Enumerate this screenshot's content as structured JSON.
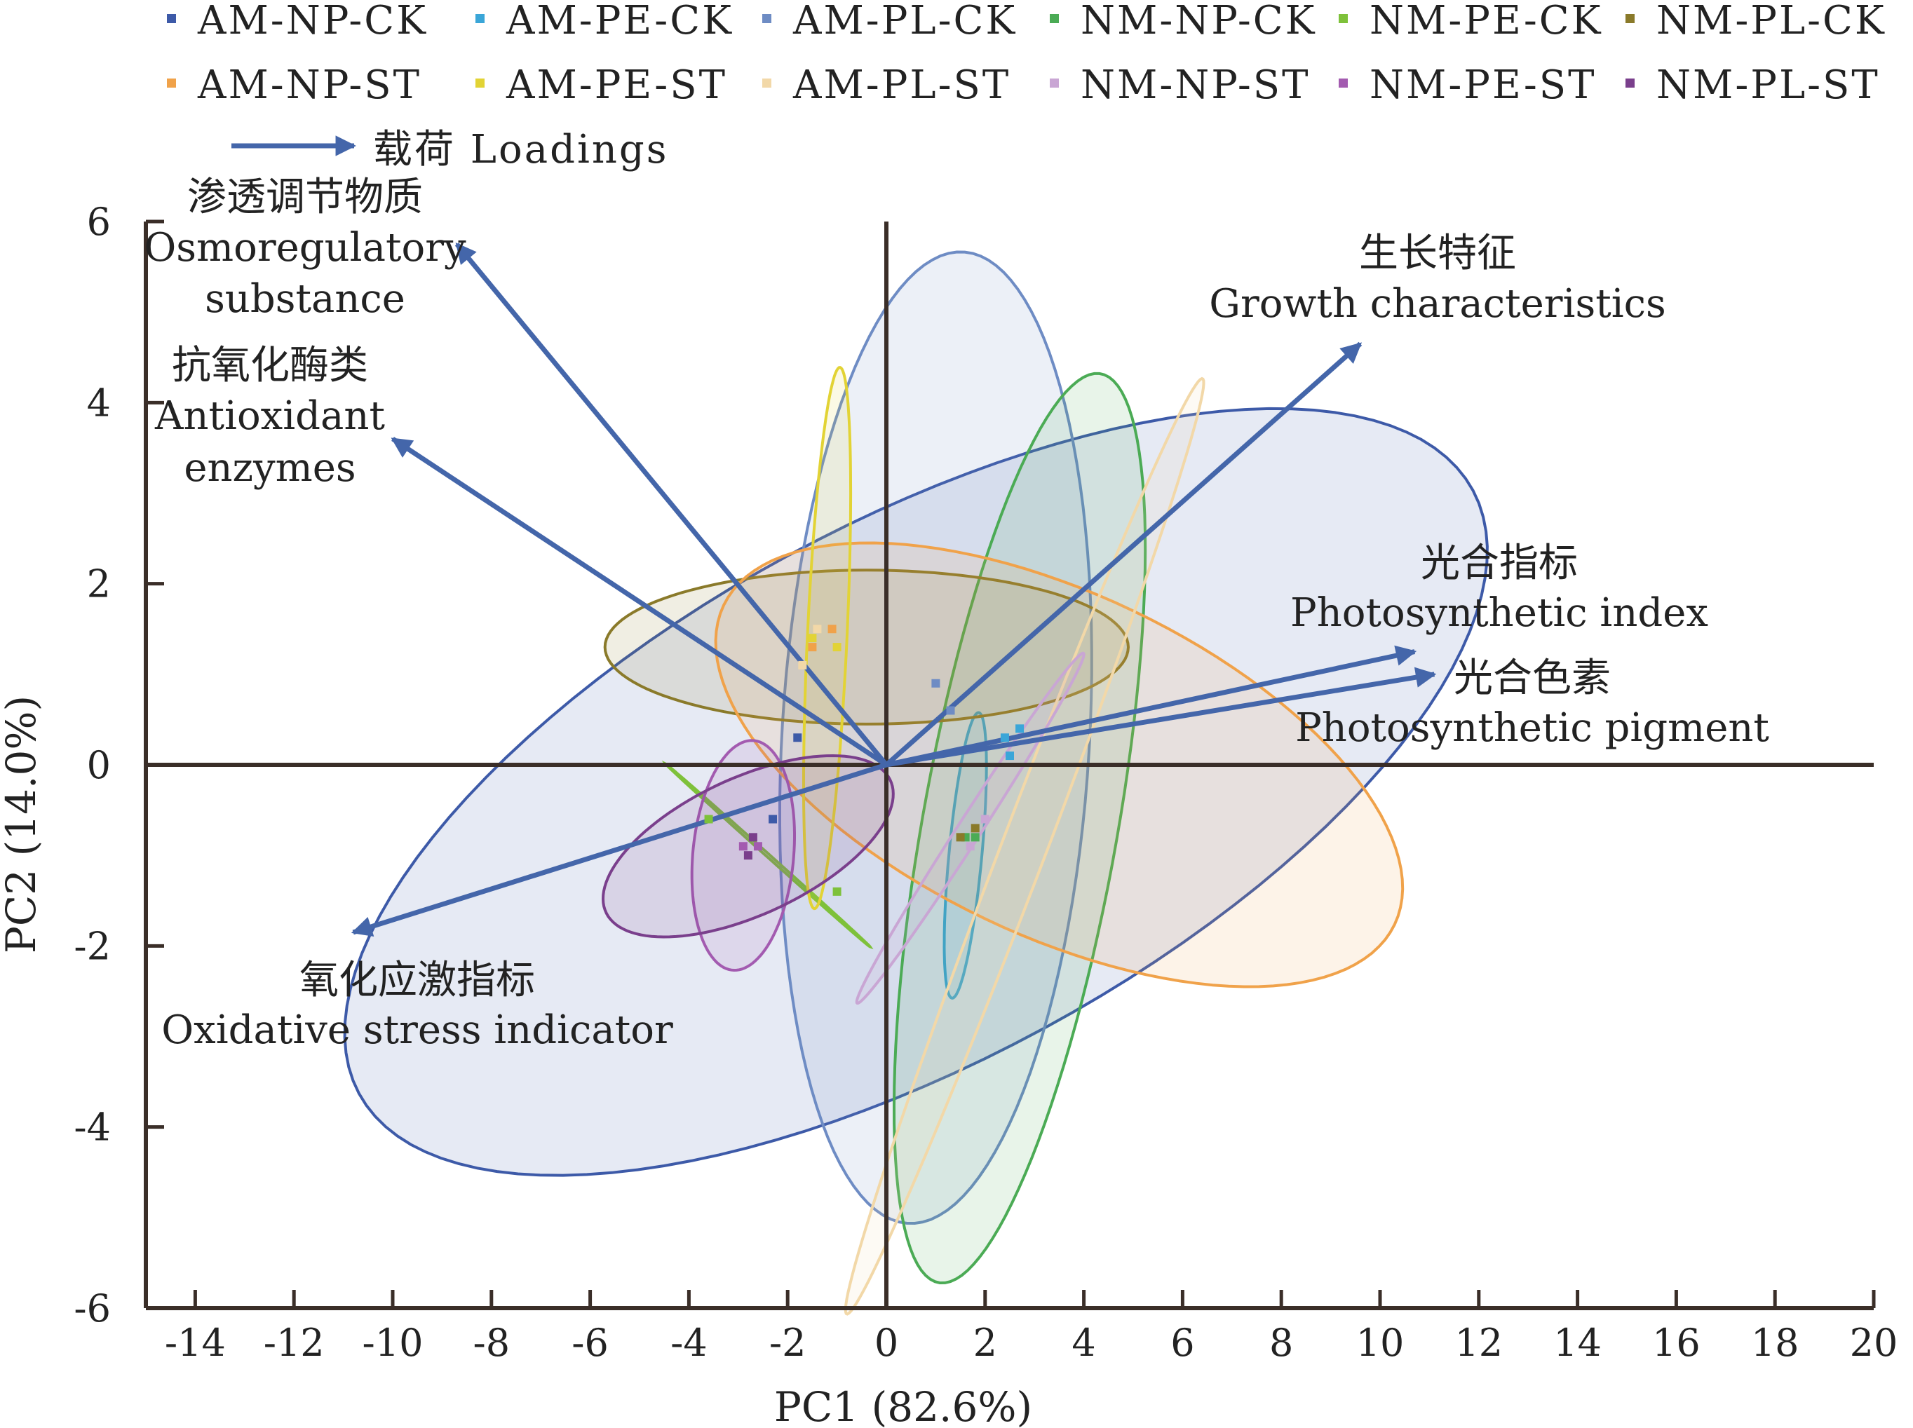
{
  "chart_data": {
    "type": "scatter",
    "subtype": "pca-biplot",
    "title": "",
    "xlabel": "PC1 (82.6%)",
    "ylabel": "PC2 (14.0%)",
    "xlim": [
      -15,
      20
    ],
    "ylim": [
      -6,
      6
    ],
    "x_ticks": [
      -14,
      -12,
      -10,
      -8,
      -6,
      -4,
      -2,
      0,
      2,
      4,
      6,
      8,
      10,
      12,
      14,
      16,
      18,
      20
    ],
    "y_ticks": [
      -6,
      -4,
      -2,
      0,
      2,
      4,
      6
    ],
    "grid": false,
    "legend_position": "top",
    "loadings_legend": "载荷 Loadings",
    "loadings_color": "#4466aa",
    "series": [
      {
        "name": "AM-NP-CK",
        "color": "#3d5aa8",
        "points": [
          [
            -2.3,
            -0.6
          ],
          [
            -1.8,
            0.3
          ]
        ],
        "ellipse": {
          "cx": 0.6,
          "cy": -0.3,
          "rx": 11.9,
          "ry": 3.2,
          "angle": 14
        }
      },
      {
        "name": "AM-PE-CK",
        "color": "#3aa6d8",
        "points": [
          [
            2.4,
            0.3
          ],
          [
            2.7,
            0.4
          ],
          [
            2.5,
            0.1
          ]
        ],
        "ellipse": {
          "cx": 1.6,
          "cy": -1.0,
          "rx": 1.6,
          "ry": 0.33,
          "angle": 80
        }
      },
      {
        "name": "AM-PL-CK",
        "color": "#6e8cc4",
        "points": [
          [
            1.0,
            0.9
          ],
          [
            1.3,
            0.6
          ]
        ],
        "ellipse": {
          "cx": 1.0,
          "cy": 0.3,
          "rx": 5.4,
          "ry": 3.1,
          "angle": 82
        }
      },
      {
        "name": "NM-NP-CK",
        "color": "#4bab55",
        "points": [
          [
            1.8,
            -0.8
          ],
          [
            1.6,
            -0.8
          ]
        ],
        "ellipse": {
          "cx": 2.7,
          "cy": -0.7,
          "rx": 5.3,
          "ry": 1.9,
          "angle": 70
        }
      },
      {
        "name": "NM-PE-CK",
        "color": "#7ec13a",
        "points": [
          [
            -3.6,
            -0.6
          ],
          [
            -1.0,
            -1.4
          ]
        ],
        "ellipse": {
          "cx": -2.4,
          "cy": -1.0,
          "rx": 2.3,
          "ry": 0.02,
          "angle": -26
        }
      },
      {
        "name": "NM-PL-CK",
        "color": "#8a7a2a",
        "points": [
          [
            1.8,
            -0.7
          ],
          [
            1.5,
            -0.8
          ]
        ],
        "ellipse": {
          "cx": -0.4,
          "cy": 1.3,
          "rx": 5.3,
          "ry": 0.85,
          "angle": 0
        }
      },
      {
        "name": "AM-NP-ST",
        "color": "#f0a24a",
        "points": [
          [
            -1.5,
            1.3
          ],
          [
            -1.1,
            1.5
          ]
        ],
        "ellipse": {
          "cx": 3.5,
          "cy": 0.0,
          "rx": 7.1,
          "ry": 2.0,
          "angle": -12
        }
      },
      {
        "name": "AM-PE-ST",
        "color": "#e2d335",
        "points": [
          [
            -1.5,
            1.4
          ],
          [
            -1.0,
            1.3
          ]
        ],
        "ellipse": {
          "cx": -1.2,
          "cy": 1.4,
          "rx": 3.0,
          "ry": 0.4,
          "angle": 85
        }
      },
      {
        "name": "AM-PL-ST",
        "color": "#f2d8a8",
        "points": [
          [
            -1.7,
            1.1
          ],
          [
            -1.4,
            1.5
          ]
        ],
        "ellipse": {
          "cx": 2.8,
          "cy": -0.9,
          "rx": 6.3,
          "ry": 0.4,
          "angle": 55
        }
      },
      {
        "name": "NM-NP-ST",
        "color": "#c9a6d4",
        "points": [
          [
            2.0,
            -0.6
          ],
          [
            1.7,
            -0.9
          ]
        ],
        "ellipse": {
          "cx": 1.7,
          "cy": -0.7,
          "rx": 3.0,
          "ry": 0.18,
          "angle": 40
        }
      },
      {
        "name": "NM-PE-ST",
        "color": "#a35bb0",
        "points": [
          [
            -2.9,
            -0.9
          ],
          [
            -2.6,
            -0.9
          ]
        ],
        "ellipse": {
          "cx": -2.9,
          "cy": -1.0,
          "rx": 1.3,
          "ry": 1.0,
          "angle": 70
        }
      },
      {
        "name": "NM-PL-ST",
        "color": "#7a3f8c",
        "points": [
          [
            -2.7,
            -0.8
          ],
          [
            -2.8,
            -1.0
          ]
        ],
        "ellipse": {
          "cx": -2.8,
          "cy": -0.9,
          "rx": 3.0,
          "ry": 0.8,
          "angle": 12
        }
      }
    ],
    "loadings": [
      {
        "zh": "渗透调节物质",
        "en": [
          "Osmoregulatory",
          "substance"
        ],
        "x": -8.7,
        "y": 5.75
      },
      {
        "zh": "抗氧化酶类",
        "en": [
          "Antioxidant",
          "enzymes"
        ],
        "x": -10.0,
        "y": 3.6
      },
      {
        "zh": "生长特征",
        "en": [
          "Growth characteristics"
        ],
        "x": 9.6,
        "y": 4.65
      },
      {
        "zh": "光合指标",
        "en": [
          "Photosynthetic index"
        ],
        "x": 10.7,
        "y": 1.25
      },
      {
        "zh": "光合色素",
        "en": [
          "Photosynthetic pigment"
        ],
        "x": 11.1,
        "y": 1.0
      },
      {
        "zh": "氧化应激指标",
        "en": [
          "Oxidative stress indicator"
        ],
        "x": -10.8,
        "y": -1.85
      }
    ]
  }
}
